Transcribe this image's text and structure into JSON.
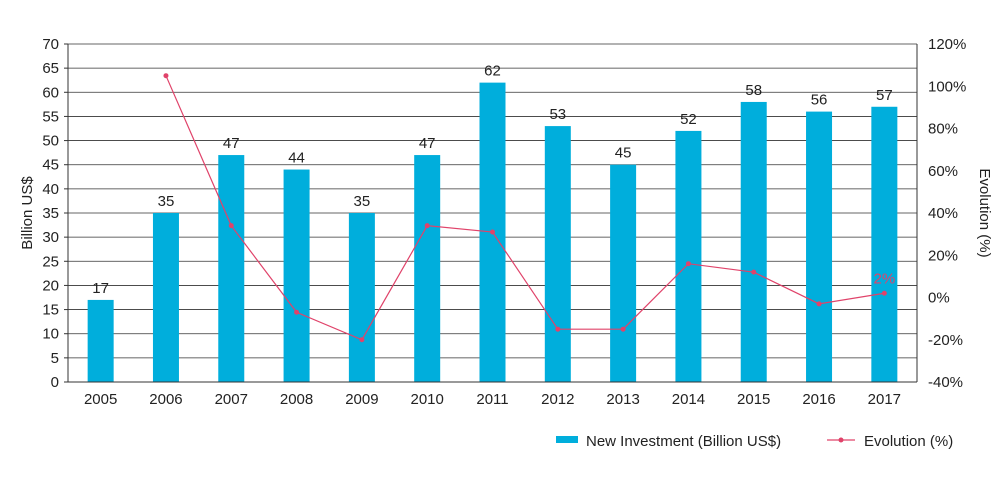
{
  "chart_data": {
    "type": "bar",
    "categories": [
      "2005",
      "2006",
      "2007",
      "2008",
      "2009",
      "2010",
      "2011",
      "2012",
      "2013",
      "2014",
      "2015",
      "2016",
      "2017"
    ],
    "series": [
      {
        "name": "New Investment (Billion US$)",
        "type": "bar",
        "axis": "left",
        "values": [
          17,
          35,
          47,
          44,
          35,
          47,
          62,
          53,
          45,
          52,
          58,
          56,
          57
        ]
      },
      {
        "name": "Evolution (%)",
        "type": "line",
        "axis": "right",
        "values": [
          null,
          105,
          34,
          -7,
          -20,
          34,
          31,
          -15,
          -15,
          16,
          12,
          -3,
          2
        ]
      }
    ],
    "data_labels": [
      "17",
      "35",
      "47",
      "44",
      "35",
      "47",
      "62",
      "53",
      "45",
      "52",
      "58",
      "56",
      "57"
    ],
    "line_annotation": {
      "category": "2017",
      "text": "2%"
    },
    "ylabel": "Billion US$",
    "ylabel_right": "Evolution (%)",
    "ylim": [
      0,
      70
    ],
    "yticks": [
      "0",
      "5",
      "10",
      "15",
      "20",
      "25",
      "30",
      "35",
      "40",
      "45",
      "50",
      "55",
      "60",
      "65",
      "70"
    ],
    "ylim_right": [
      -40,
      120
    ],
    "yticks_right": [
      "-40%",
      "-20%",
      "0%",
      "20%",
      "40%",
      "60%",
      "80%",
      "100%",
      "120%"
    ],
    "grid": true,
    "legend_position": "bottom-right",
    "colors": {
      "bar": "#00AEDC",
      "line": "#E0436A",
      "grid": "#333333"
    }
  }
}
